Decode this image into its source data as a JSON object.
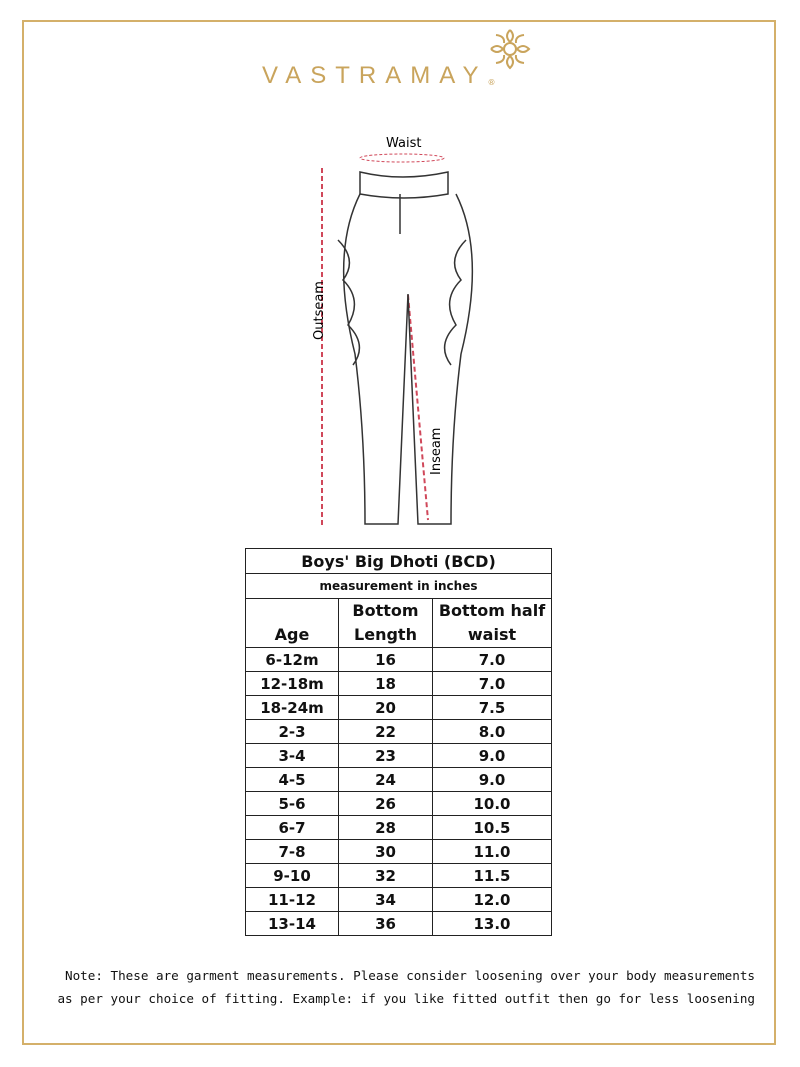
{
  "brand": {
    "name": "VASTRAMAY",
    "registered": "®",
    "color": "#c9a45c"
  },
  "diagram": {
    "waist": "Waist",
    "outseam": "Outseam",
    "inseam": "Inseam"
  },
  "table": {
    "title": "Boys' Big Dhoti (BCD)",
    "subtitle": "measurement in inches",
    "headers": [
      "Age",
      "Bottom Length",
      "Bottom half waist"
    ],
    "header_lines": [
      [
        "",
        "Age"
      ],
      [
        "Bottom",
        "Length"
      ],
      [
        "Bottom half",
        "waist"
      ]
    ],
    "rows": [
      [
        "6-12m",
        "16",
        "7.0"
      ],
      [
        "12-18m",
        "18",
        "7.0"
      ],
      [
        "18-24m",
        "20",
        "7.5"
      ],
      [
        "2-3",
        "22",
        "8.0"
      ],
      [
        "3-4",
        "23",
        "9.0"
      ],
      [
        "4-5",
        "24",
        "9.0"
      ],
      [
        "5-6",
        "26",
        "10.0"
      ],
      [
        "6-7",
        "28",
        "10.5"
      ],
      [
        "7-8",
        "30",
        "11.0"
      ],
      [
        "9-10",
        "32",
        "11.5"
      ],
      [
        "11-12",
        "34",
        "12.0"
      ],
      [
        "13-14",
        "36",
        "13.0"
      ]
    ]
  },
  "note": {
    "line1": "Note: These are garment measurements. Please consider loosening over your body measurements",
    "line2": "as per your choice of fitting. Example: if you like fitted outfit then go for less loosening"
  }
}
